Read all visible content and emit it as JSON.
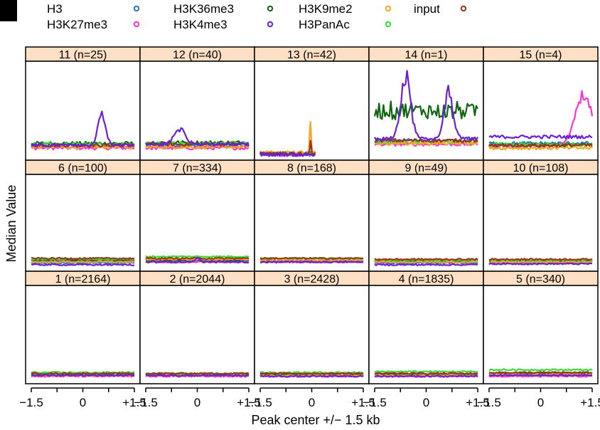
{
  "chart_data": {
    "type": "line",
    "xlabel": "Peak center +/− 1.5 kb",
    "ylabel": "Median Value",
    "x_range": [
      -1.5,
      1.5
    ],
    "x_ticks": [
      "−1.5",
      "0",
      "+1.5"
    ],
    "legend": {
      "placement": "top",
      "entries": [
        {
          "name": "H3",
          "color": "#1f78c8"
        },
        {
          "name": "H3K27me3",
          "color": "#ff33cc"
        },
        {
          "name": "H3K36me3",
          "color": "#116611"
        },
        {
          "name": "H3K4me3",
          "color": "#6a1fd8"
        },
        {
          "name": "H3K9me2",
          "color": "#f5a623"
        },
        {
          "name": "H3PanAc",
          "color": "#33dd33"
        },
        {
          "name": "input",
          "color": "#993322"
        }
      ]
    },
    "y_range": [
      0,
      1
    ],
    "panels": [
      {
        "label": "11 (n=25)",
        "base": {
          "H3": 0.12,
          "H3K27me3": 0.1,
          "H3K36me3": 0.15,
          "H3K4me3": 0.13,
          "H3K9me2": 0.11,
          "H3PanAc": 0.14,
          "input": 0.13
        },
        "peaks": [
          {
            "series": "H3K4me3",
            "center": 0.55,
            "width": 0.3,
            "height": 0.36
          }
        ]
      },
      {
        "label": "12 (n=40)",
        "base": {
          "H3": 0.12,
          "H3K27me3": 0.1,
          "H3K36me3": 0.16,
          "H3K4me3": 0.14,
          "H3K9me2": 0.11,
          "H3PanAc": 0.15,
          "input": 0.14
        },
        "peaks": [
          {
            "series": "H3K4me3",
            "center": -0.5,
            "width": 0.45,
            "height": 0.17
          }
        ]
      },
      {
        "label": "13 (n=42)",
        "x_max": 0.1,
        "base": {
          "H3": 0.04,
          "H3K27me3": 0.03,
          "H3K36me3": 0.04,
          "H3K4me3": 0.03,
          "H3K9me2": 0.05,
          "H3PanAc": 0.04,
          "input": 0.04
        },
        "peaks": [
          {
            "series": "H3K9me2",
            "center": -0.04,
            "width": 0.06,
            "height": 0.33
          },
          {
            "series": "input",
            "center": -0.03,
            "width": 0.05,
            "height": 0.12
          }
        ]
      },
      {
        "label": "14 (n=1)",
        "base": {
          "H3": 0.18,
          "H3K27me3": 0.14,
          "H3K36me3": 0.5,
          "H3K4me3": 0.2,
          "H3K9me2": 0.15,
          "H3PanAc": 0.16,
          "input": 0.18
        },
        "peaks": [
          {
            "series": "H3K4me3",
            "center": -0.6,
            "width": 0.4,
            "height": 0.65
          },
          {
            "series": "H3K4me3",
            "center": 0.65,
            "width": 0.35,
            "height": 0.5
          }
        ]
      },
      {
        "label": "15 (n=4)",
        "base": {
          "H3": 0.15,
          "H3K27me3": 0.12,
          "H3K36me3": 0.13,
          "H3K4me3": 0.22,
          "H3K9me2": 0.1,
          "H3PanAc": 0.14,
          "input": 0.13
        },
        "peaks": [
          {
            "series": "H3K27me3",
            "center": 1.25,
            "width": 0.7,
            "height": 0.55
          }
        ]
      },
      {
        "label": "6 (n=100)",
        "base": {
          "H3": 0.06,
          "H3K27me3": 0.08,
          "H3K36me3": 0.09,
          "H3K4me3": 0.04,
          "H3K9me2": 0.07,
          "H3PanAc": 0.1,
          "input": 0.11
        },
        "peaks": []
      },
      {
        "label": "7 (n=334)",
        "base": {
          "H3": 0.08,
          "H3K27me3": 0.07,
          "H3K36me3": 0.09,
          "H3K4me3": 0.07,
          "H3K9me2": 0.1,
          "H3PanAc": 0.13,
          "input": 0.11
        },
        "peaks": [
          {
            "series": "H3K4me3",
            "center": 0.0,
            "width": 0.2,
            "height": 0.04
          }
        ]
      },
      {
        "label": "8 (n=168)",
        "base": {
          "H3": 0.08,
          "H3K27me3": 0.07,
          "H3K36me3": 0.09,
          "H3K4me3": 0.07,
          "H3K9me2": 0.09,
          "H3PanAc": 0.11,
          "input": 0.11
        },
        "peaks": []
      },
      {
        "label": "9 (n=49)",
        "base": {
          "H3": 0.06,
          "H3K27me3": 0.07,
          "H3K36me3": 0.08,
          "H3K4me3": 0.04,
          "H3K9me2": 0.07,
          "H3PanAc": 0.09,
          "input": 0.1
        },
        "peaks": []
      },
      {
        "label": "10 (n=108)",
        "base": {
          "H3": 0.06,
          "H3K27me3": 0.07,
          "H3K36me3": 0.08,
          "H3K4me3": 0.05,
          "H3K9me2": 0.07,
          "H3PanAc": 0.09,
          "input": 0.1
        },
        "peaks": []
      },
      {
        "label": "1 (n=2164)",
        "base": {
          "H3": 0.06,
          "H3K27me3": 0.05,
          "H3K36me3": 0.07,
          "H3K4me3": 0.06,
          "H3K9me2": 0.06,
          "H3PanAc": 0.09,
          "input": 0.08
        },
        "peaks": []
      },
      {
        "label": "2 (n=2044)",
        "base": {
          "H3": 0.06,
          "H3K27me3": 0.05,
          "H3K36me3": 0.07,
          "H3K4me3": 0.06,
          "H3K9me2": 0.06,
          "H3PanAc": 0.08,
          "input": 0.08
        },
        "peaks": []
      },
      {
        "label": "3 (n=2428)",
        "base": {
          "H3": 0.06,
          "H3K27me3": 0.05,
          "H3K36me3": 0.07,
          "H3K4me3": 0.05,
          "H3K9me2": 0.06,
          "H3PanAc": 0.09,
          "input": 0.08
        },
        "peaks": []
      },
      {
        "label": "4 (n=1835)",
        "base": {
          "H3": 0.06,
          "H3K27me3": 0.05,
          "H3K36me3": 0.07,
          "H3K4me3": 0.05,
          "H3K9me2": 0.06,
          "H3PanAc": 0.1,
          "input": 0.08
        },
        "peaks": []
      },
      {
        "label": "5 (n=340)",
        "base": {
          "H3": 0.07,
          "H3K27me3": 0.05,
          "H3K36me3": 0.08,
          "H3K4me3": 0.06,
          "H3K9me2": 0.07,
          "H3PanAc": 0.12,
          "input": 0.09
        },
        "peaks": []
      }
    ]
  }
}
